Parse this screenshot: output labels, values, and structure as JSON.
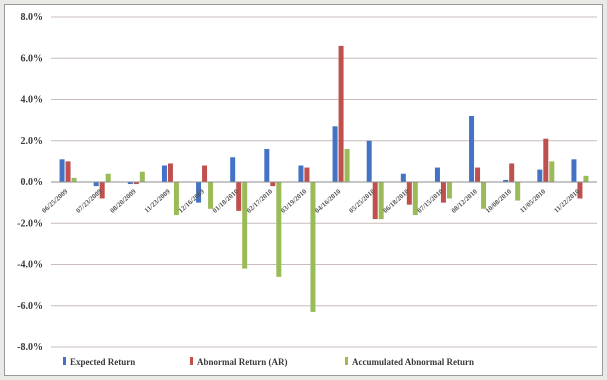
{
  "chart_data": {
    "type": "bar",
    "title": "",
    "xlabel": "",
    "ylabel": "",
    "ylim": [
      -8,
      8
    ],
    "yticks": [
      "-8.0%",
      "-6.0%",
      "-4.0%",
      "-2.0%",
      "0.0%",
      "2.0%",
      "4.0%",
      "6.0%",
      "8.0%"
    ],
    "grid": true,
    "legend": "bottom",
    "categories": [
      "06/25/2009",
      "07/23/2009",
      "08/20/2009",
      "11/23/2009",
      "12/16/2009",
      "01/18/2010",
      "02/17/2010",
      "03/19/2010",
      "04/16/2010",
      "05/25/2010",
      "06/18/2010",
      "07/15/2010",
      "08/12/2010",
      "10/08/2010",
      "11/05/2010",
      "11/22/2010"
    ],
    "x_labels": [
      "06/25/2009",
      "07/23/2009",
      "08/20/2009",
      "11/23/2009",
      "12/16/2009",
      "01/18/2010",
      "02/17/2010",
      "03/19/2010",
      "04/16/2010",
      "05/25/2010",
      "06/18/2010",
      "07/15/2010",
      "08/12/2010",
      "10/08/2010",
      "11/05/2010",
      "11/22/2010"
    ],
    "series": [
      {
        "name": "Expected Return",
        "color": "#4472c4",
        "values": [
          1.1,
          -0.2,
          -0.1,
          0.8,
          -1.0,
          1.2,
          1.6,
          0.8,
          2.7,
          2.0,
          0.4,
          0.7,
          3.2,
          0.1,
          0.6,
          1.1
        ]
      },
      {
        "name": "Abnormal Return (AR)",
        "color": "#c0504d",
        "values": [
          1.0,
          -0.8,
          -0.1,
          0.9,
          0.8,
          -1.4,
          -0.2,
          0.7,
          6.6,
          -1.8,
          -1.1,
          -1.0,
          0.7,
          0.9,
          2.1,
          -0.8
        ]
      },
      {
        "name": "Accumulated Abnormal Return",
        "color": "#9bbb59",
        "values": [
          0.2,
          0.4,
          0.5,
          -1.6,
          -1.3,
          -4.2,
          -4.6,
          -6.3,
          1.6,
          -1.8,
          -1.6,
          -0.8,
          -1.3,
          -0.9,
          1.0,
          0.3
        ]
      }
    ]
  }
}
